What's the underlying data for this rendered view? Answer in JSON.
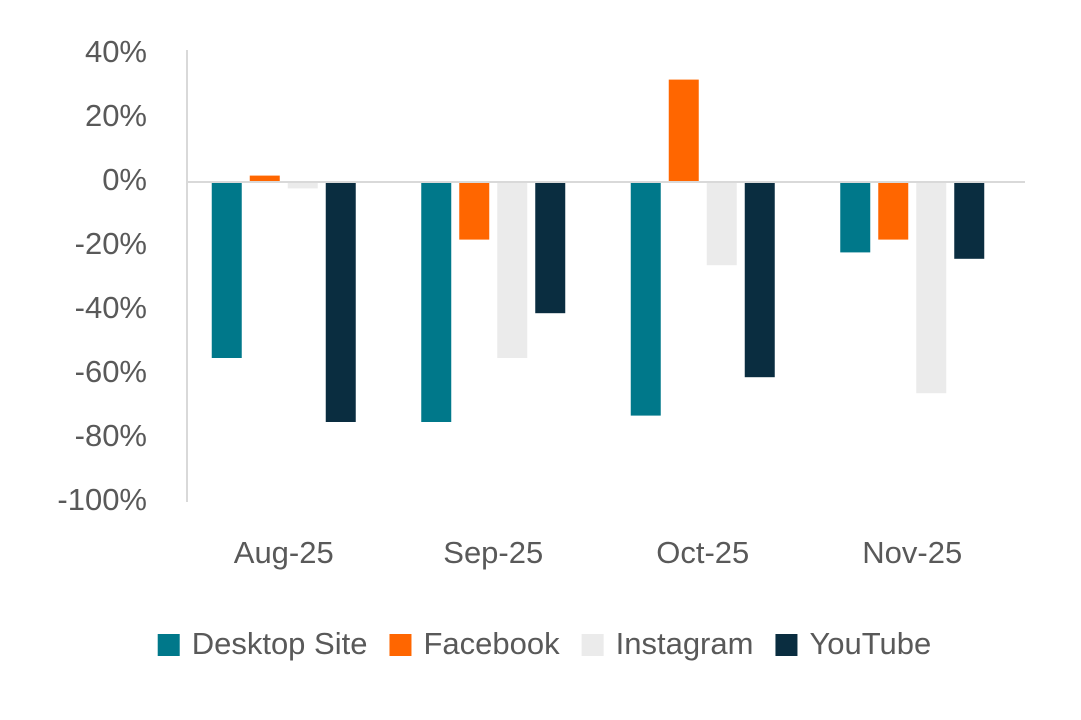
{
  "chart_data": {
    "type": "bar",
    "categories": [
      "Aug-25",
      "Sep-25",
      "Oct-25",
      "Nov-25"
    ],
    "series": [
      {
        "name": "Desktop Site",
        "color": "#00788a",
        "values": [
          -55,
          -75,
          -73,
          -22
        ]
      },
      {
        "name": "Facebook",
        "color": "#ff6600",
        "values": [
          2,
          -18,
          32,
          -18
        ]
      },
      {
        "name": "Instagram",
        "color": "#ebebeb",
        "values": [
          -2,
          -55,
          -26,
          -66
        ]
      },
      {
        "name": "YouTube",
        "color": "#0a2d40",
        "values": [
          -75,
          -41,
          -61,
          -24
        ]
      }
    ],
    "ylim": [
      -100,
      40
    ],
    "yticks": [
      {
        "value": -100,
        "label": "-100%"
      },
      {
        "value": -80,
        "label": "-80%"
      },
      {
        "value": -60,
        "label": "-60%"
      },
      {
        "value": -40,
        "label": "-40%"
      },
      {
        "value": -20,
        "label": "-20%"
      },
      {
        "value": 0,
        "label": "0%"
      },
      {
        "value": 20,
        "label": "20%"
      },
      {
        "value": 40,
        "label": "40%"
      }
    ],
    "grid": false,
    "legend": "bottom"
  }
}
